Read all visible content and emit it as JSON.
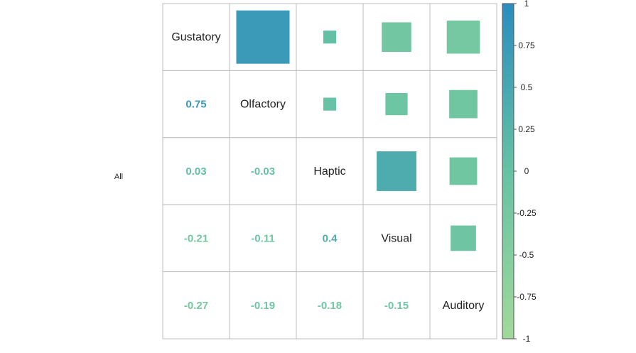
{
  "chart_data": {
    "type": "heatmap",
    "group_label": "All",
    "variables": [
      "Gustatory",
      "Olfactory",
      "Haptic",
      "Visual",
      "Auditory"
    ],
    "matrix": [
      [
        1.0,
        0.75,
        0.03,
        -0.21,
        -0.27
      ],
      [
        0.75,
        1.0,
        -0.03,
        -0.11,
        -0.19
      ],
      [
        0.03,
        -0.03,
        1.0,
        0.4,
        -0.18
      ],
      [
        -0.21,
        -0.11,
        0.4,
        1.0,
        -0.15
      ],
      [
        -0.27,
        -0.19,
        -0.18,
        -0.15,
        1.0
      ]
    ],
    "lower_labels": [
      [
        null,
        null,
        null,
        null,
        null
      ],
      [
        "0.75",
        null,
        null,
        null,
        null
      ],
      [
        "0.03",
        "-0.03",
        null,
        null,
        null
      ],
      [
        "-0.21",
        "-0.11",
        "0.4",
        null,
        null
      ],
      [
        "-0.27",
        "-0.19",
        "-0.18",
        "-0.15",
        null
      ]
    ],
    "upper_method": "square",
    "lower_method": "number",
    "diagonal": "variable names",
    "colorbar": {
      "range": [
        -1,
        1
      ],
      "ticks": [
        "1",
        "0.75",
        "0.5",
        "0.25",
        "0",
        "-0.25",
        "-0.5",
        "-0.75",
        "-1"
      ],
      "colors": [
        "#a1d99b",
        "#66c2a4",
        "#2b8cbe"
      ]
    }
  }
}
